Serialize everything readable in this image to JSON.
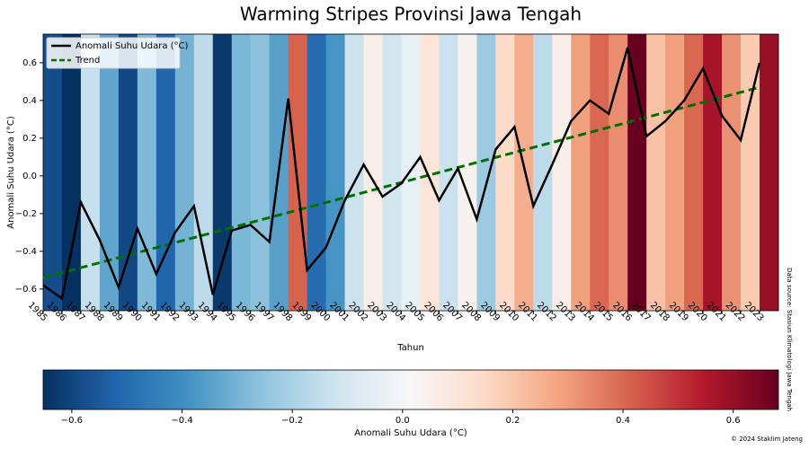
{
  "chart_data": {
    "type": "line",
    "title": "Warming Stripes Provinsi Jawa Tengah",
    "x_label": "Tahun",
    "y_label": "Anomali Suhu Udara (°C)",
    "x": [
      1985,
      1986,
      1987,
      1988,
      1989,
      1990,
      1991,
      1992,
      1993,
      1994,
      1995,
      1996,
      1997,
      1998,
      1999,
      2000,
      2001,
      2002,
      2003,
      2004,
      2005,
      2006,
      2007,
      2008,
      2009,
      2010,
      2011,
      2012,
      2013,
      2014,
      2015,
      2016,
      2017,
      2018,
      2019,
      2020,
      2021,
      2022,
      2023
    ],
    "series": [
      {
        "name": "Anomali Suhu Udara (°C)",
        "color": "#000000",
        "values": [
          -0.58,
          -0.65,
          -0.14,
          -0.34,
          -0.59,
          -0.28,
          -0.52,
          -0.3,
          -0.16,
          -0.63,
          -0.29,
          -0.26,
          -0.35,
          0.41,
          -0.5,
          -0.38,
          -0.13,
          0.06,
          -0.11,
          -0.04,
          0.1,
          -0.13,
          0.04,
          -0.23,
          0.14,
          0.26,
          -0.16,
          0.06,
          0.29,
          0.4,
          0.33,
          0.68,
          0.21,
          0.29,
          0.4,
          0.57,
          0.32,
          0.19,
          0.6
        ]
      }
    ],
    "trend": {
      "name": "Trend",
      "color": "#007000",
      "x": [
        1985,
        2023
      ],
      "values": [
        -0.54,
        0.47
      ]
    },
    "xlim": [
      1985,
      2024
    ],
    "ylim": [
      -0.715,
      0.752
    ],
    "yticks": [
      {
        "value": -0.6,
        "label": "−0.6"
      },
      {
        "value": -0.4,
        "label": "−0.4"
      },
      {
        "value": -0.2,
        "label": "−0.2"
      },
      {
        "value": 0,
        "label": "0.0"
      },
      0.2,
      0.4,
      0.6
    ],
    "legend": "upper left",
    "colormap": [
      "#053061",
      "#2166ac",
      "#4393c3",
      "#92c5de",
      "#d1e5f0",
      "#f7f7f7",
      "#fddbc7",
      "#f4a582",
      "#d6604d",
      "#b2182b",
      "#67001f"
    ],
    "colorbar": {
      "label": "Anomali Suhu Udara (°C)",
      "clim": [
        -0.652,
        0.682
      ],
      "ticks": [
        {
          "value": -0.6,
          "label": "−0.6"
        },
        {
          "value": -0.4,
          "label": "−0.4"
        },
        {
          "value": -0.2,
          "label": "−0.2"
        },
        {
          "value": 0,
          "label": "0.0"
        },
        0.2,
        0.4,
        0.6
      ]
    },
    "source": "Data source: Stasiun Klimatologi Jawa Tengah",
    "credit": "© 2024 Staklim Jateng"
  }
}
